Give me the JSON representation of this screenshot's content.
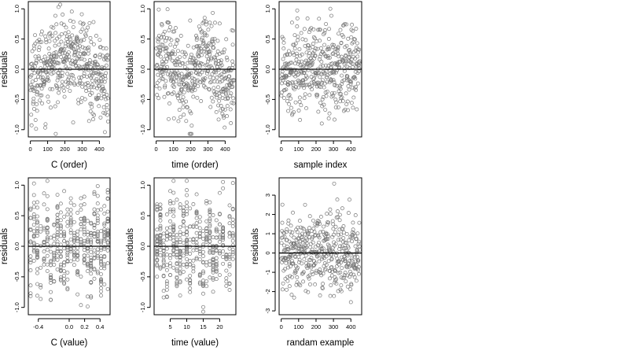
{
  "chart_data": [
    {
      "type": "scatter",
      "xlabel": "C (order)",
      "ylabel": "residuals",
      "xticks": [
        0,
        100,
        200,
        300,
        400
      ],
      "yticks": [
        -1.0,
        -0.5,
        0.0,
        0.5,
        1.0
      ],
      "ytick_labels": [
        "-1.0",
        "-0.5",
        "0.0",
        "0.5",
        "1.0"
      ],
      "xlim": [
        -12,
        462
      ],
      "ylim": [
        -1.12,
        1.12
      ],
      "hline": 0,
      "series": [
        {
          "x_range": [
            1,
            450
          ],
          "n": 450,
          "pattern": "arch",
          "scale": 0.35
        }
      ]
    },
    {
      "type": "scatter",
      "xlabel": "time (order)",
      "ylabel": "residuals",
      "xticks": [
        0,
        100,
        200,
        300,
        400
      ],
      "yticks": [
        -1.0,
        -0.5,
        0.0,
        0.5,
        1.0
      ],
      "ytick_labels": [
        "-1.0",
        "-0.5",
        "0.0",
        "0.5",
        "1.0"
      ],
      "xlim": [
        -12,
        462
      ],
      "ylim": [
        -1.12,
        1.12
      ],
      "hline": 0,
      "series": [
        {
          "x_range": [
            1,
            450
          ],
          "n": 450,
          "pattern": "wave",
          "scale": 0.35
        }
      ]
    },
    {
      "type": "scatter",
      "xlabel": "sample index",
      "ylabel": "residuals",
      "xticks": [
        0,
        100,
        200,
        300,
        400
      ],
      "yticks": [
        -1.0,
        -0.5,
        0.0,
        0.5,
        1.0
      ],
      "ytick_labels": [
        "-1.0",
        "-0.5",
        "0.0",
        "0.5",
        "1.0"
      ],
      "xlim": [
        -12,
        462
      ],
      "ylim": [
        -1.12,
        1.12
      ],
      "hline": 0,
      "series": [
        {
          "x_range": [
            1,
            450
          ],
          "n": 450,
          "pattern": "noise",
          "scale": 0.38
        }
      ]
    },
    {
      "type": "scatter",
      "xlabel": "C (value)",
      "ylabel": "residuals",
      "xticks": [
        -0.4,
        0.0,
        0.2,
        0.4
      ],
      "xtick_labels": [
        "-0.4",
        "0.0",
        "0.2",
        "0.4"
      ],
      "yticks": [
        -1.0,
        -0.5,
        0.0,
        0.5,
        1.0
      ],
      "ytick_labels": [
        "-1.0",
        "-0.5",
        "0.0",
        "0.5",
        "1.0"
      ],
      "xlim": [
        -0.53,
        0.53
      ],
      "ylim": [
        -1.12,
        1.12
      ],
      "hline": 0,
      "series": [
        {
          "x_range": [
            -0.5,
            0.5
          ],
          "n": 450,
          "pattern": "columns",
          "columns": 24,
          "scale": 0.35
        }
      ]
    },
    {
      "type": "scatter",
      "xlabel": "time (value)",
      "ylabel": "residuals",
      "xticks": [
        5,
        10,
        15,
        20
      ],
      "yticks": [
        -1.0,
        -0.5,
        0.0,
        0.5,
        1.0
      ],
      "ytick_labels": [
        "-1.0",
        "-0.5",
        "0.0",
        "0.5",
        "1.0"
      ],
      "xlim": [
        0.1,
        24.9
      ],
      "ylim": [
        -1.12,
        1.12
      ],
      "hline": 0,
      "series": [
        {
          "x_range": [
            1,
            24
          ],
          "n": 450,
          "pattern": "columns",
          "columns": 24,
          "scale": 0.35
        }
      ]
    },
    {
      "type": "scatter",
      "xlabel": "randam example",
      "ylabel": "residuals",
      "xticks": [
        0,
        100,
        200,
        300,
        400
      ],
      "yticks": [
        -3,
        -2,
        -1,
        0,
        1,
        2,
        3
      ],
      "ytick_labels": [
        "-3",
        "-2",
        "-1",
        "0",
        "1",
        "2",
        "3"
      ],
      "xlim": [
        -12,
        462
      ],
      "ylim": [
        -3.2,
        3.9
      ],
      "hline": 0,
      "series": [
        {
          "x_range": [
            1,
            450
          ],
          "n": 450,
          "pattern": "normal",
          "scale": 1.0
        }
      ]
    }
  ]
}
